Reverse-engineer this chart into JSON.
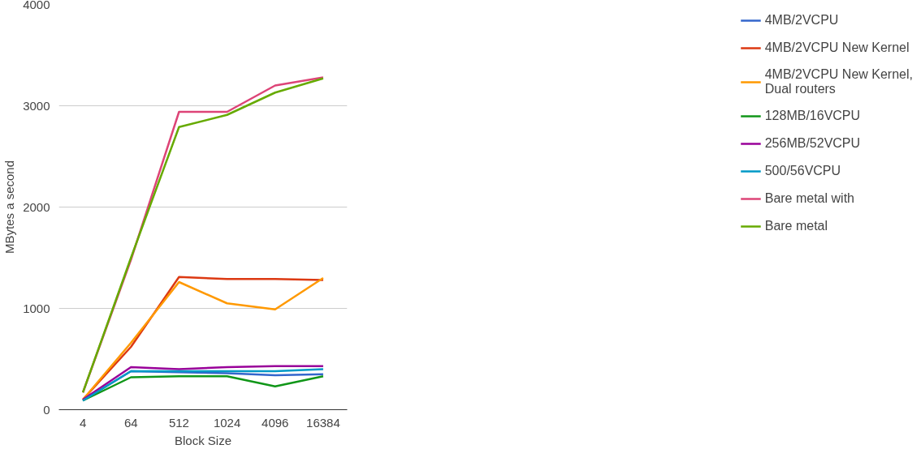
{
  "chart_data": {
    "type": "line",
    "xlabel": "Block Size",
    "ylabel": "MBytes a second",
    "categories": [
      "4",
      "64",
      "512",
      "1024",
      "4096",
      "16384"
    ],
    "ylim": [
      0,
      4000
    ],
    "yticks": [
      0,
      1000,
      2000,
      3000,
      4000
    ],
    "grid": "y",
    "legend": "right",
    "series": [
      {
        "name": "4MB/2VCPU",
        "color": "#3366cc",
        "values": [
          90,
          380,
          370,
          360,
          340,
          350
        ]
      },
      {
        "name": "4MB/2VCPU New Kernel",
        "color": "#dc3912",
        "values": [
          100,
          620,
          1310,
          1290,
          1290,
          1280
        ]
      },
      {
        "name": "4MB/2VCPU New Kernel, Dual routers",
        "color": "#ff9900",
        "values": [
          100,
          660,
          1260,
          1050,
          990,
          1300
        ]
      },
      {
        "name": "128MB/16VCPU",
        "color": "#109618",
        "values": [
          90,
          320,
          330,
          330,
          230,
          330
        ]
      },
      {
        "name": "256MB/52VCPU",
        "color": "#990099",
        "values": [
          100,
          420,
          400,
          420,
          430,
          430
        ]
      },
      {
        "name": "500/56VCPU",
        "color": "#0099c6",
        "values": [
          90,
          380,
          380,
          380,
          380,
          400
        ]
      },
      {
        "name": "Bare metal with",
        "color": "#dd4477",
        "values": [
          170,
          1480,
          2940,
          2940,
          3200,
          3280
        ]
      },
      {
        "name": "Bare metal",
        "color": "#66aa00",
        "values": [
          170,
          1500,
          2790,
          2910,
          3130,
          3270
        ]
      }
    ]
  }
}
